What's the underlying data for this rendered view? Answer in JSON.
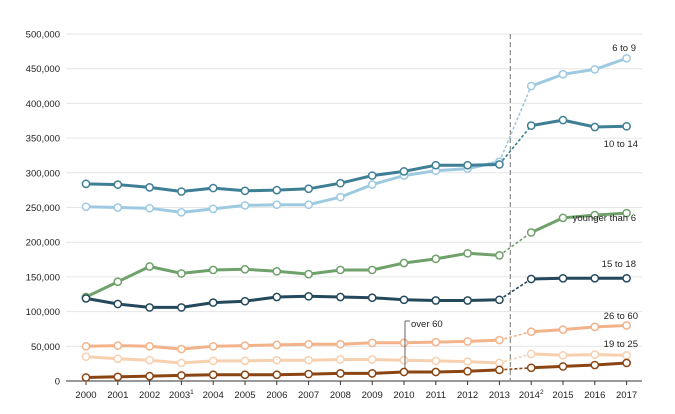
{
  "chart_data": {
    "type": "line",
    "title": "",
    "xlabel": "",
    "ylabel": "",
    "ylim": [
      0,
      500000
    ],
    "y_ticks": [
      {
        "value": 0,
        "label": "0"
      },
      {
        "value": 50000,
        "label": "50,000"
      },
      {
        "value": 100000,
        "label": "100,000"
      },
      {
        "value": 150000,
        "label": "150,000"
      },
      {
        "value": 200000,
        "label": "200,000"
      },
      {
        "value": 250000,
        "label": "250,000"
      },
      {
        "value": 300000,
        "label": "300,000"
      },
      {
        "value": 350000,
        "label": "350,000"
      },
      {
        "value": 400000,
        "label": "400,000"
      },
      {
        "value": 450000,
        "label": "450,000"
      },
      {
        "value": 500000,
        "label": "500,000"
      }
    ],
    "x": [
      {
        "label": "2000",
        "sup": ""
      },
      {
        "label": "2001",
        "sup": ""
      },
      {
        "label": "2002",
        "sup": ""
      },
      {
        "label": "2003",
        "sup": "1"
      },
      {
        "label": "2004",
        "sup": ""
      },
      {
        "label": "2005",
        "sup": ""
      },
      {
        "label": "2006",
        "sup": ""
      },
      {
        "label": "2007",
        "sup": ""
      },
      {
        "label": "2008",
        "sup": ""
      },
      {
        "label": "2009",
        "sup": ""
      },
      {
        "label": "2010",
        "sup": ""
      },
      {
        "label": "2011",
        "sup": ""
      },
      {
        "label": "2012",
        "sup": ""
      },
      {
        "label": "2013",
        "sup": ""
      },
      {
        "label": "2014",
        "sup": "2"
      },
      {
        "label": "2015",
        "sup": ""
      },
      {
        "label": "2016",
        "sup": ""
      },
      {
        "label": "2017",
        "sup": ""
      }
    ],
    "break_after_index": 13,
    "series": [
      {
        "name": "6 to 9",
        "color": "#9ecae1",
        "values": [
          251000,
          250000,
          249000,
          243000,
          248000,
          253000,
          254000,
          254000,
          265000,
          283000,
          296000,
          303000,
          306000,
          316000,
          425000,
          442000,
          449000,
          465000
        ]
      },
      {
        "name": "10 to 14",
        "color": "#3f7f96",
        "values": [
          284000,
          283000,
          279000,
          273000,
          278000,
          274000,
          275000,
          277000,
          285000,
          296000,
          302000,
          311000,
          311000,
          312000,
          368000,
          376000,
          366000,
          367000
        ]
      },
      {
        "name": "younger than 6",
        "color": "#6fa16a",
        "values": [
          121000,
          143000,
          165000,
          155000,
          160000,
          161000,
          158000,
          154000,
          160000,
          160000,
          170000,
          176000,
          184000,
          181000,
          214000,
          235000,
          239000,
          242000
        ]
      },
      {
        "name": "15 to 18",
        "color": "#24495c",
        "values": [
          119000,
          111000,
          106000,
          106000,
          113000,
          115000,
          121000,
          122000,
          121000,
          120000,
          117000,
          116000,
          116000,
          117000,
          147000,
          148000,
          148000,
          148000
        ]
      },
      {
        "name": "26 to 60",
        "color": "#f2b38a",
        "values": [
          50000,
          51000,
          50000,
          46000,
          50000,
          51000,
          52000,
          53000,
          53000,
          55000,
          55000,
          56000,
          57000,
          59000,
          71000,
          74000,
          78000,
          80000
        ]
      },
      {
        "name": "19 to 25",
        "color": "#f7d0b0",
        "values": [
          35000,
          32000,
          30000,
          26000,
          29000,
          29000,
          30000,
          30000,
          31000,
          31000,
          30000,
          29000,
          28000,
          26000,
          39000,
          37000,
          38000,
          37000
        ]
      },
      {
        "name": "over 60",
        "color": "#8b4513",
        "values": [
          5000,
          6000,
          7000,
          8000,
          9000,
          9000,
          9000,
          10000,
          11000,
          11000,
          13000,
          13000,
          14000,
          16000,
          19000,
          21000,
          23000,
          26000
        ]
      }
    ],
    "grid": true,
    "legend": "inline labels at right end of each line"
  }
}
